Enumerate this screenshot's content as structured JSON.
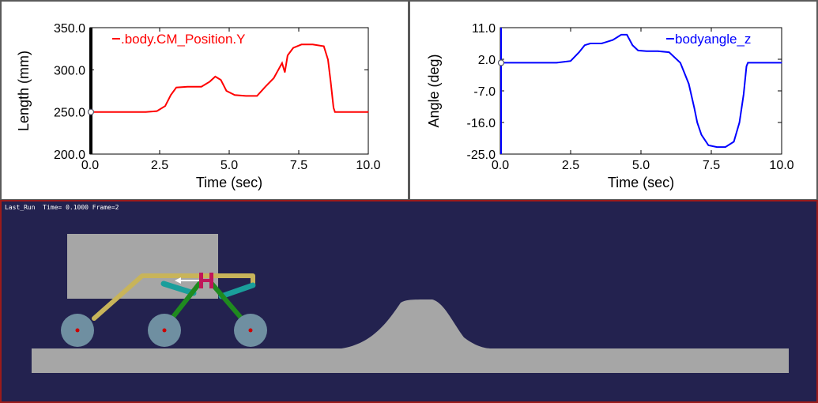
{
  "chart_data": [
    {
      "type": "line",
      "xlabel": "Time (sec)",
      "ylabel": "Length (mm)",
      "xlim": [
        0.0,
        10.0
      ],
      "ylim": [
        200.0,
        350.0
      ],
      "xticks": [
        "0.0",
        "2.5",
        "5.0",
        "7.5",
        "10.0"
      ],
      "yticks": [
        "350.0",
        "300.0",
        "250.0",
        "200.0"
      ],
      "legend_position": "top-left",
      "color": "#ff0000",
      "series": [
        {
          "name": ".body.CM_Position.Y",
          "x": [
            0.0,
            1.0,
            2.0,
            2.4,
            2.7,
            2.9,
            3.1,
            3.5,
            4.0,
            4.3,
            4.5,
            4.7,
            4.9,
            5.2,
            5.6,
            6.0,
            6.3,
            6.6,
            6.9,
            7.0,
            7.1,
            7.3,
            7.6,
            8.0,
            8.4,
            8.55,
            8.65,
            8.75,
            8.8,
            9.0,
            10.0
          ],
          "y": [
            250,
            250,
            250,
            251,
            257,
            270,
            279,
            280,
            280,
            286,
            292,
            288,
            275,
            270,
            269,
            269,
            280,
            290,
            308,
            297,
            317,
            326,
            330,
            330,
            328,
            312,
            285,
            255,
            250,
            250,
            250
          ]
        }
      ],
      "marker": {
        "x": 0.0,
        "y": 250.0
      }
    },
    {
      "type": "line",
      "xlabel": "Time (sec)",
      "ylabel": "Angle (deg)",
      "xlim": [
        0.0,
        10.0
      ],
      "ylim": [
        -25.0,
        11.0
      ],
      "xticks": [
        "0.0",
        "2.5",
        "5.0",
        "7.5",
        "10.0"
      ],
      "yticks": [
        "11.0",
        "2.0",
        "-7.0",
        "-16.0",
        "-25.0"
      ],
      "legend_position": "top-right",
      "color": "#0000ff",
      "series": [
        {
          "name": "bodyangle_z",
          "x": [
            0.0,
            1.0,
            2.0,
            2.5,
            2.8,
            3.0,
            3.2,
            3.6,
            4.0,
            4.3,
            4.5,
            4.7,
            4.9,
            5.2,
            5.6,
            6.0,
            6.4,
            6.7,
            6.9,
            7.0,
            7.15,
            7.4,
            7.7,
            8.0,
            8.3,
            8.5,
            8.65,
            8.75,
            8.8,
            9.0,
            10.0
          ],
          "y": [
            1.0,
            1.0,
            1.0,
            1.5,
            4.0,
            6.0,
            6.5,
            6.5,
            7.5,
            9.0,
            9.0,
            6.0,
            4.5,
            4.3,
            4.3,
            4.0,
            1.0,
            -5.0,
            -12.0,
            -16.0,
            -19.5,
            -22.5,
            -23.0,
            -23.0,
            -21.5,
            -16.0,
            -8.0,
            0.0,
            1.0,
            1.0,
            1.0
          ]
        }
      ],
      "marker": {
        "x": 0.0,
        "y": 1.0
      }
    }
  ],
  "animation": {
    "status_text": "Last_Run  Time= 0.1000 Frame=2",
    "colors": {
      "background": "#23224f",
      "ground": "#a6a6a6",
      "body": "#a6a6a6",
      "wheel": "#6f8fa1",
      "rocker": "#c8b45a",
      "link_green": "#1f8a1f",
      "link_teal": "#1a9e9b",
      "pivot": "#c0165a",
      "arrow": "#ffffff",
      "wheel_center": "#cc0000"
    }
  }
}
